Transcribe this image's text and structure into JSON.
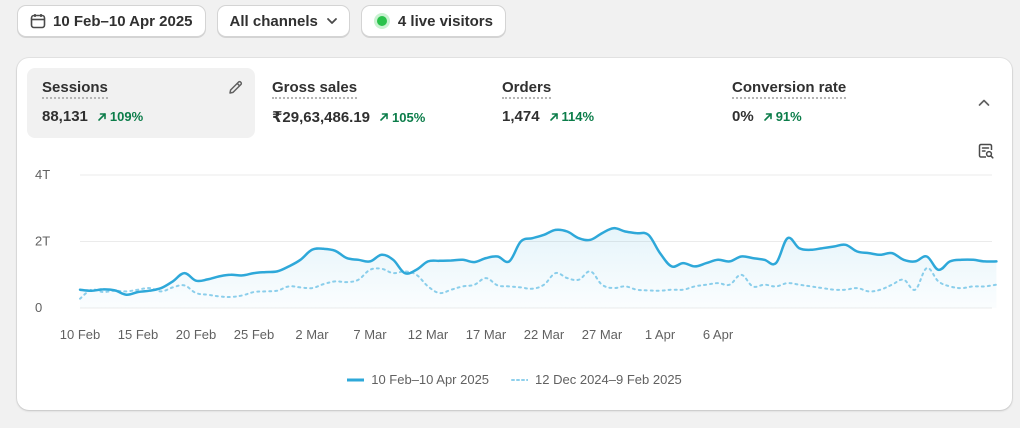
{
  "toolbar": {
    "date_range": "10 Feb–10 Apr 2025",
    "channel": "All channels",
    "live_visitors": "4 live visitors"
  },
  "metrics": [
    {
      "label": "Sessions",
      "value": "88,131",
      "change": "109%"
    },
    {
      "label": "Gross sales",
      "value": "₹29,63,486.19",
      "change": "105%"
    },
    {
      "label": "Orders",
      "value": "1,474",
      "change": "114%"
    },
    {
      "label": "Conversion rate",
      "value": "0%",
      "change": "91%"
    }
  ],
  "colors": {
    "primary_series": "#2ea8d9",
    "comparison_series": "#8fd0ec",
    "positive_change": "#0c7d4a",
    "live_dot": "#29c24b"
  },
  "chart_data": {
    "type": "line",
    "y_ticks": [
      {
        "value": 0,
        "label": "0"
      },
      {
        "value": 2000,
        "label": "2T"
      },
      {
        "value": 4000,
        "label": "4T"
      }
    ],
    "ylim": [
      0,
      4000
    ],
    "x_tick_labels": [
      "10 Feb",
      "15 Feb",
      "20 Feb",
      "25 Feb",
      "2 Mar",
      "7 Mar",
      "12 Mar",
      "17 Mar",
      "22 Mar",
      "27 Mar",
      "1 Apr",
      "6 Apr"
    ],
    "x_tick_step_days": 5,
    "grid": true,
    "legend_placement": "bottom-center",
    "series": [
      {
        "name": "10 Feb–10 Apr 2025",
        "style": "solid",
        "area_fill": true,
        "values": [
          550,
          520,
          560,
          530,
          400,
          480,
          520,
          600,
          800,
          1050,
          820,
          860,
          950,
          1000,
          980,
          1050,
          1080,
          1100,
          1250,
          1450,
          1750,
          1780,
          1720,
          1500,
          1450,
          1400,
          1600,
          1450,
          1050,
          1150,
          1400,
          1420,
          1430,
          1450,
          1380,
          1500,
          1550,
          1400,
          2000,
          2100,
          2200,
          2350,
          2300,
          2100,
          2050,
          2250,
          2400,
          2300,
          2250,
          2200,
          1650,
          1250,
          1350,
          1250,
          1350,
          1450,
          1400,
          1550,
          1500,
          1450,
          1350,
          2100,
          1800,
          1750,
          1800,
          1850,
          1900,
          1700,
          1650,
          1600,
          1650,
          1450,
          1400,
          1550,
          1150,
          1400,
          1450,
          1450,
          1400,
          1400
        ]
      },
      {
        "name": "12 Dec 2024–9 Feb 2025",
        "style": "dotted",
        "area_fill": false,
        "values": [
          280,
          550,
          480,
          520,
          500,
          550,
          600,
          500,
          620,
          680,
          450,
          400,
          350,
          330,
          380,
          480,
          500,
          520,
          650,
          620,
          600,
          720,
          800,
          780,
          850,
          1150,
          1180,
          1050,
          1100,
          1000,
          650,
          450,
          550,
          650,
          700,
          900,
          680,
          650,
          620,
          580,
          700,
          1050,
          900,
          850,
          1100,
          700,
          600,
          650,
          550,
          530,
          520,
          550,
          550,
          650,
          700,
          750,
          700,
          1000,
          650,
          700,
          650,
          750,
          700,
          650,
          600,
          550,
          550,
          600,
          500,
          550,
          700,
          850,
          550,
          1200,
          800,
          650,
          600,
          650,
          650,
          700
        ]
      }
    ]
  }
}
